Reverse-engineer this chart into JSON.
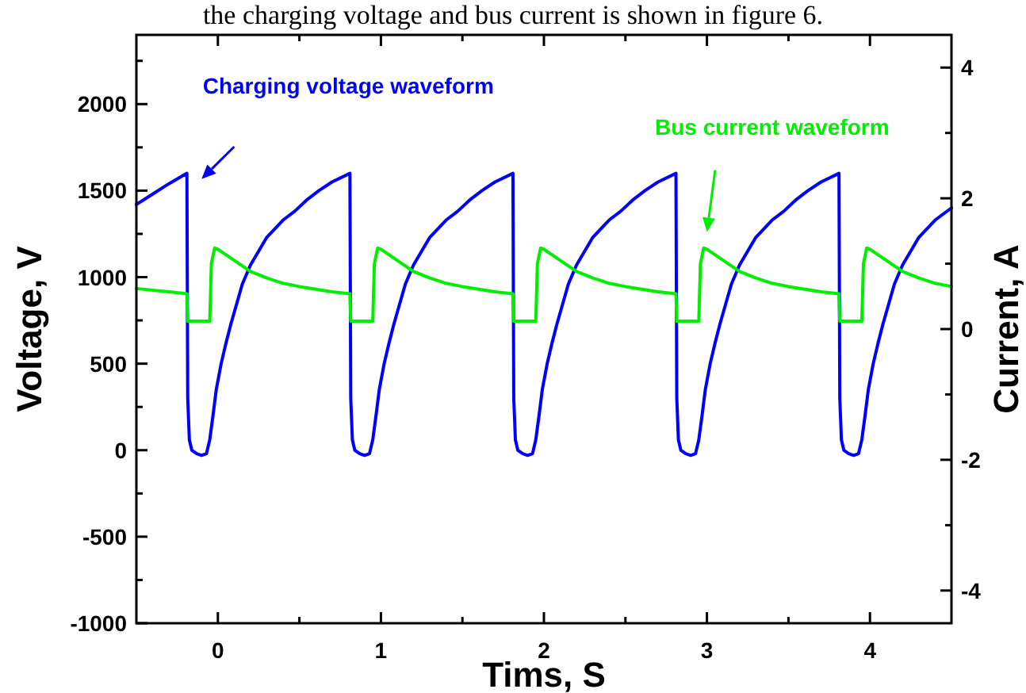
{
  "chart_data": {
    "type": "line",
    "xlabel": "Tims, S",
    "ylabel": "Voltage, V",
    "y2label": "Current, A",
    "xlim": [
      -0.5,
      4.5
    ],
    "xticks": [
      0,
      {
        "value": 0.5,
        "label": null
      },
      1,
      {
        "value": 1.5,
        "label": null
      },
      2,
      {
        "value": 2.5,
        "label": null
      },
      3,
      {
        "value": 3.5,
        "label": null
      },
      4
    ],
    "ylim": [
      -1000,
      2400
    ],
    "yticks": [
      -1000,
      {
        "value": -750,
        "label": null
      },
      -500,
      {
        "value": -250,
        "label": null
      },
      0,
      {
        "value": 250,
        "label": null
      },
      500,
      {
        "value": 750,
        "label": null
      },
      1000,
      {
        "value": 1250,
        "label": null
      },
      1500,
      {
        "value": 1750,
        "label": null
      },
      2000,
      {
        "value": 2250,
        "label": null
      }
    ],
    "y2lim": [
      -4.5,
      4.5
    ],
    "y2ticks": [
      -4,
      {
        "value": -3,
        "label": null
      },
      -2,
      {
        "value": -1,
        "label": null
      },
      0,
      {
        "value": 1,
        "label": null
      },
      2,
      {
        "value": 3,
        "label": null
      },
      4
    ],
    "marker": "none",
    "line_style": "solid",
    "series": [
      {
        "color": "#0000ff",
        "x": [
          -0.5,
          -0.4,
          -0.3,
          -0.19,
          -0.185,
          -0.175,
          -0.16,
          -0.13,
          -0.1,
          -0.07,
          -0.05,
          -0.03,
          -0.01,
          0.02,
          0.05,
          0.08,
          0.15,
          0.2,
          0.3,
          0.4,
          0.47,
          0.55,
          0.62,
          0.7,
          0.81,
          0.815,
          0.825,
          0.84,
          0.87,
          0.9,
          0.93,
          0.95,
          0.97,
          0.99,
          1.02,
          1.05,
          1.08,
          1.15,
          1.2,
          1.3,
          1.4,
          1.47,
          1.55,
          1.62,
          1.7,
          1.81,
          1.815,
          1.825,
          1.84,
          1.87,
          1.9,
          1.93,
          1.95,
          1.97,
          1.99,
          2.02,
          2.05,
          2.08,
          2.15,
          2.2,
          2.3,
          2.4,
          2.47,
          2.55,
          2.62,
          2.7,
          2.81,
          2.815,
          2.825,
          2.84,
          2.87,
          2.9,
          2.93,
          2.95,
          2.97,
          2.99,
          3.02,
          3.05,
          3.08,
          3.15,
          3.2,
          3.3,
          3.4,
          3.47,
          3.55,
          3.62,
          3.7,
          3.81,
          3.815,
          3.825,
          3.84,
          3.87,
          3.9,
          3.93,
          3.95,
          3.97,
          3.99,
          4.02,
          4.05,
          4.08,
          4.15,
          4.2,
          4.3,
          4.4,
          4.5
        ],
        "values": [
          1420,
          1480,
          1540,
          1600,
          300,
          60,
          0,
          -20,
          -30,
          -20,
          60,
          200,
          350,
          500,
          620,
          730,
          960,
          1070,
          1230,
          1330,
          1380,
          1450,
          1500,
          1550,
          1600,
          300,
          60,
          0,
          -20,
          -30,
          -20,
          60,
          200,
          350,
          500,
          620,
          730,
          960,
          1070,
          1230,
          1330,
          1380,
          1450,
          1500,
          1550,
          1600,
          300,
          60,
          0,
          -20,
          -30,
          -20,
          60,
          200,
          350,
          500,
          620,
          730,
          960,
          1070,
          1230,
          1330,
          1380,
          1450,
          1500,
          1550,
          1600,
          300,
          60,
          0,
          -20,
          -30,
          -20,
          60,
          200,
          350,
          500,
          620,
          730,
          960,
          1070,
          1230,
          1330,
          1380,
          1450,
          1500,
          1550,
          1600,
          300,
          60,
          0,
          -20,
          -30,
          -20,
          60,
          200,
          350,
          500,
          620,
          730,
          960,
          1070,
          1230,
          1330,
          1400
        ]
      },
      {
        "color": "#00ee00",
        "axis": "y2",
        "x": [
          -0.5,
          -0.3,
          -0.19,
          -0.185,
          -0.05,
          -0.04,
          -0.02,
          0,
          0.1,
          0.2,
          0.3,
          0.4,
          0.5,
          0.6,
          0.7,
          0.81,
          0.815,
          0.95,
          0.96,
          0.98,
          1,
          1.1,
          1.2,
          1.3,
          1.4,
          1.5,
          1.6,
          1.7,
          1.81,
          1.815,
          1.95,
          1.96,
          1.98,
          2,
          2.1,
          2.2,
          2.3,
          2.4,
          2.5,
          2.6,
          2.7,
          2.81,
          2.815,
          2.95,
          2.96,
          2.98,
          3,
          3.1,
          3.2,
          3.3,
          3.4,
          3.5,
          3.6,
          3.7,
          3.81,
          3.815,
          3.95,
          3.96,
          3.98,
          4,
          4.1,
          4.2,
          4.3,
          4.4,
          4.5
        ],
        "values": [
          0.62,
          0.57,
          0.54,
          0.12,
          0.12,
          1.0,
          1.24,
          1.22,
          1.05,
          0.88,
          0.78,
          0.7,
          0.65,
          0.61,
          0.57,
          0.54,
          0.12,
          0.12,
          1.0,
          1.24,
          1.22,
          1.05,
          0.88,
          0.78,
          0.7,
          0.65,
          0.61,
          0.57,
          0.54,
          0.12,
          0.12,
          1.0,
          1.24,
          1.22,
          1.05,
          0.88,
          0.78,
          0.7,
          0.65,
          0.61,
          0.57,
          0.54,
          0.12,
          0.12,
          1.0,
          1.24,
          1.22,
          1.05,
          0.88,
          0.78,
          0.7,
          0.65,
          0.61,
          0.57,
          0.54,
          0.12,
          0.12,
          1.0,
          1.24,
          1.22,
          1.05,
          0.88,
          0.78,
          0.7,
          0.65
        ]
      }
    ],
    "annotations": [
      "Charging voltage waveform",
      "Bus current waveform",
      "the charging voltage and bus current is shown in figure 6."
    ]
  }
}
